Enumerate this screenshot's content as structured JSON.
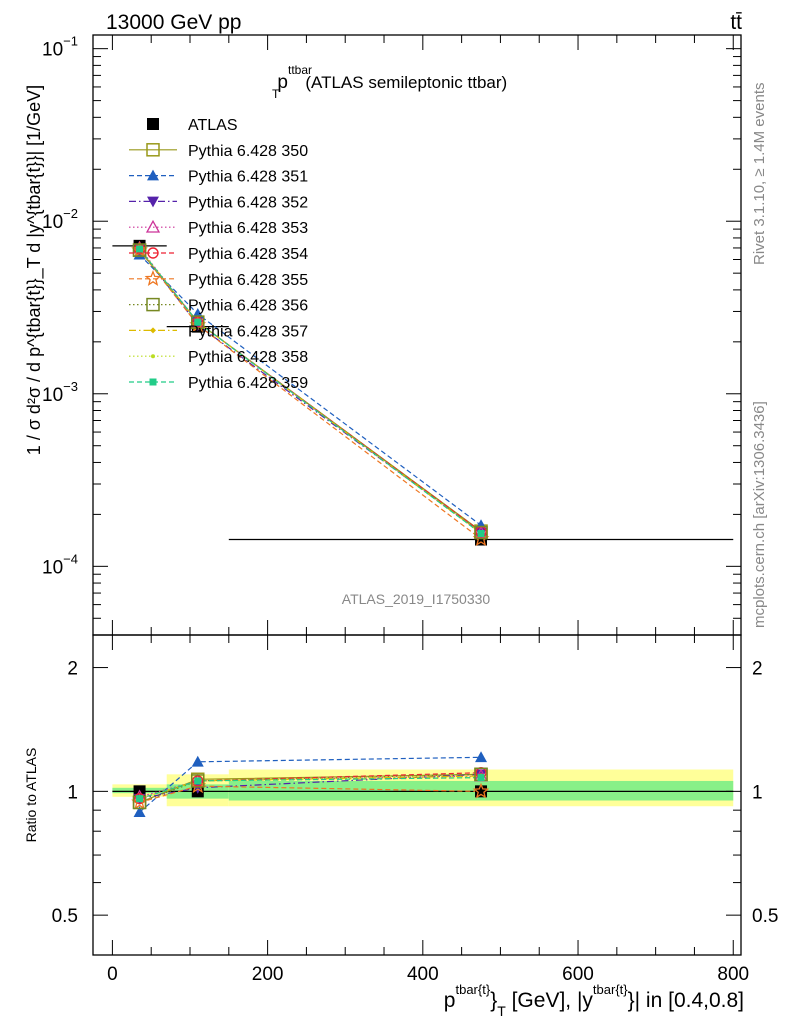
{
  "header": {
    "energy_label": "13000 GeV pp",
    "process_label": "tt̄"
  },
  "side": {
    "rivet_label": "Rivet 3.1.10, ≥ 1.4M events",
    "mcplots_label": "mcplots.cern.ch [arXiv:1306.3436]"
  },
  "colors": {
    "data": "#000000",
    "band_stat": "#88f088",
    "band_total": "#ffff99"
  },
  "chart_data": [
    {
      "panel": "main",
      "type": "line",
      "title_main": "p",
      "title_sup": "ttbar",
      "title_sub": "T",
      "title_rest": "(ATLAS semileptonic ttbar)",
      "ylabel": "1 / σ d²σ / d p^{tbar{t}}_T d |y^{tbar{t}}| [1/GeV]",
      "xlabel_pre": "p",
      "xlabel_sup1": "tbar{t}",
      "xlabel_mid": "}",
      "xlabel_sub": "T",
      "xlabel_rest": " [GeV], |y",
      "xlabel_sup2": "tbar{t}",
      "xlabel_end": "}| in [0.4,0.8]",
      "analysis_label": "ATLAS_2019_I1750330",
      "xlim": [
        -25,
        810
      ],
      "ylim": [
        4e-05,
        0.12
      ],
      "yscale": "log",
      "y_tick_labels": [
        {
          "value": 0.1,
          "base": "10",
          "exp": "−1"
        },
        {
          "value": 0.01,
          "base": "10",
          "exp": "−2"
        },
        {
          "value": 0.001,
          "base": "10",
          "exp": "−3"
        },
        {
          "value": 0.0001,
          "base": "10",
          "exp": "−4"
        }
      ],
      "legend_position": "top-left",
      "x": [
        35,
        110,
        475
      ],
      "x_err": [
        [
          0,
          70
        ],
        [
          70,
          150
        ],
        [
          150,
          800
        ]
      ],
      "series": [
        {
          "name": "ATLAS",
          "color": "#000000",
          "marker": "square-filled",
          "line": "none",
          "values": [
            0.0072,
            0.00245,
            0.000143
          ]
        },
        {
          "name": "Pythia 6.428 350",
          "color": "#99991a",
          "marker": "square-open",
          "line": "solid",
          "values": [
            0.0068,
            0.0026,
            0.00016
          ]
        },
        {
          "name": "Pythia 6.428 351",
          "color": "#1f5fbf",
          "marker": "triangle-up-filled",
          "line": "dashed",
          "values": [
            0.0064,
            0.0029,
            0.000173
          ]
        },
        {
          "name": "Pythia 6.428 352",
          "color": "#5522aa",
          "marker": "triangle-down-filled",
          "line": "dashdot",
          "values": [
            0.0069,
            0.0025,
            0.000157
          ]
        },
        {
          "name": "Pythia 6.428 353",
          "color": "#cc3399",
          "marker": "triangle-up-open",
          "line": "dotted",
          "values": [
            0.007,
            0.0026,
            0.000156
          ]
        },
        {
          "name": "Pythia 6.428 354",
          "color": "#ee2233",
          "marker": "circle-open",
          "line": "dashed",
          "values": [
            0.0069,
            0.0026,
            0.000159
          ]
        },
        {
          "name": "Pythia 6.428 355",
          "color": "#ee7722",
          "marker": "star",
          "line": "dashed",
          "values": [
            0.0068,
            0.0025,
            0.000144
          ]
        },
        {
          "name": "Pythia 6.428 356",
          "color": "#778822",
          "marker": "square-open",
          "line": "dotted",
          "values": [
            0.0068,
            0.0026,
            0.000157
          ]
        },
        {
          "name": "Pythia 6.428 357",
          "color": "#ddbb00",
          "marker": "diamond-small",
          "line": "dashdot",
          "values": [
            0.0069,
            0.0026,
            0.000156
          ]
        },
        {
          "name": "Pythia 6.428 358",
          "color": "#bbdd22",
          "marker": "dot",
          "line": "dotted",
          "values": [
            0.0069,
            0.0026,
            0.000155
          ]
        },
        {
          "name": "Pythia 6.428 359",
          "color": "#22cc88",
          "marker": "square-small",
          "line": "dashed",
          "values": [
            0.0069,
            0.0026,
            0.000155
          ]
        }
      ]
    },
    {
      "panel": "ratio",
      "type": "line",
      "ylabel": "Ratio to ATLAS",
      "xlim": [
        -25,
        810
      ],
      "ylim": [
        0.4,
        2.4
      ],
      "yscale": "log",
      "x_ticks": [
        0,
        200,
        400,
        600,
        800
      ],
      "y_ticks": [
        0.5,
        1,
        2
      ],
      "bands": {
        "total": [
          [
            0.97,
            1.04
          ],
          [
            0.92,
            1.1
          ],
          [
            0.92,
            1.13
          ]
        ],
        "stat": [
          [
            0.99,
            1.02
          ],
          [
            0.96,
            1.04
          ],
          [
            0.95,
            1.06
          ]
        ]
      },
      "series_ratios": [
        {
          "name": "Pythia 6.428 350",
          "values": [
            0.94,
            1.07,
            1.1
          ]
        },
        {
          "name": "Pythia 6.428 351",
          "values": [
            0.89,
            1.18,
            1.21
          ]
        },
        {
          "name": "Pythia 6.428 352",
          "values": [
            0.96,
            1.02,
            1.1
          ]
        },
        {
          "name": "Pythia 6.428 353",
          "values": [
            0.97,
            1.06,
            1.09
          ]
        },
        {
          "name": "Pythia 6.428 354",
          "values": [
            0.96,
            1.06,
            1.11
          ]
        },
        {
          "name": "Pythia 6.428 355",
          "values": [
            0.94,
            1.03,
            1.0
          ]
        },
        {
          "name": "Pythia 6.428 356",
          "values": [
            0.94,
            1.06,
            1.1
          ]
        },
        {
          "name": "Pythia 6.428 357",
          "values": [
            0.96,
            1.06,
            1.09
          ]
        },
        {
          "name": "Pythia 6.428 358",
          "values": [
            0.96,
            1.06,
            1.08
          ]
        },
        {
          "name": "Pythia 6.428 359",
          "values": [
            0.96,
            1.06,
            1.08
          ]
        }
      ]
    }
  ]
}
